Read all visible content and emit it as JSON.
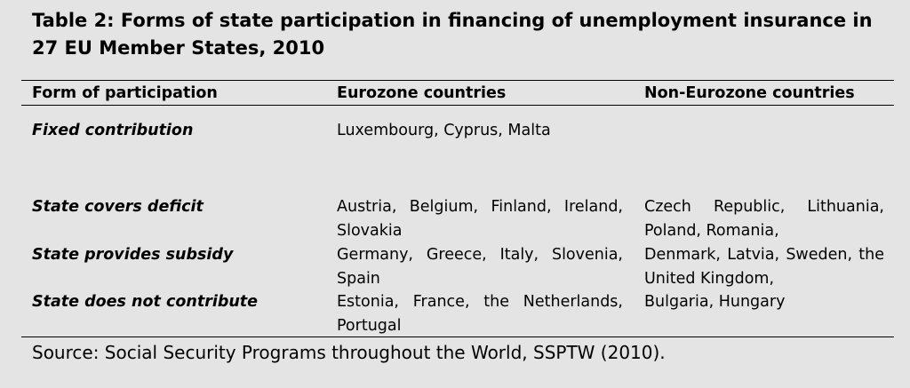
{
  "title": "Table 2: Forms of state participation in financing of unemployment insurance in 27 EU Member States, 2010",
  "table": {
    "header": [
      "Form of participation",
      "Eurozone countries",
      "Non-Eurozone countries"
    ],
    "rows": [
      [
        "Fixed contribution",
        "Luxembourg, Cyprus, Malta"
      ],
      [
        "State covers deficit",
        "Austria, Belgium, Finland, Ireland, Slovakia",
        "Czech Republic, Lithuania, Poland, Romania,"
      ],
      [
        "State provides subsidy",
        "Germany, Greece, Italy, Slovenia, Spain",
        "Denmark, Latvia, Sweden, the United Kingdom,"
      ],
      [
        "State does not contribute",
        "Estonia, France, the Netherlands, Portugal",
        "Bulgaria, Hungary"
      ]
    ]
  },
  "source": "Source: Social Security Programs throughout the World, SSPTW (2010)."
}
